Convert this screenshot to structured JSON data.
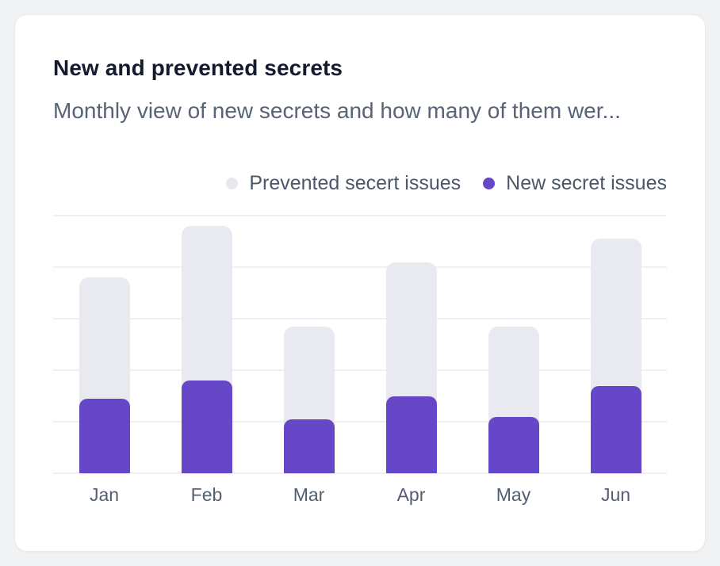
{
  "card": {
    "title": "New and prevented secrets",
    "subtitle": "Monthly view of new secrets and how many of them wer..."
  },
  "legend": {
    "position": "top-right",
    "items": [
      {
        "label": "Prevented secert issues",
        "color": "#e7e8ee"
      },
      {
        "label": "New secret issues",
        "color": "#6547c8"
      }
    ]
  },
  "chart_data": {
    "type": "bar",
    "variant": "overlapped-bars",
    "title": "New and prevented secrets",
    "xlabel": "",
    "ylabel": "",
    "categories": [
      "Jan",
      "Feb",
      "Mar",
      "Apr",
      "May",
      "Jun"
    ],
    "series": [
      {
        "name": "Prevented secert issues",
        "color": "#e9eaef",
        "values": [
          76,
          96,
          57,
          82,
          57,
          91
        ]
      },
      {
        "name": "New secret issues",
        "color": "#6547c8",
        "values": [
          29,
          36,
          21,
          30,
          22,
          34
        ]
      }
    ],
    "ylim": [
      0,
      100
    ],
    "grid": true,
    "gridline_count": 6,
    "gridline_color": "#eef0f3",
    "y_axis_labels_visible": false,
    "legend_position": "top-right"
  },
  "colors": {
    "page_background": "#f1f2f4",
    "card_background": "#ffffff",
    "card_border": "#e8eaee",
    "title_text": "#151b2e",
    "subtitle_text": "#596376",
    "legend_text": "#4c5769",
    "axis_label_text": "#535e73",
    "bar_prevented": "#e9eaef",
    "bar_new": "#6547c8"
  }
}
